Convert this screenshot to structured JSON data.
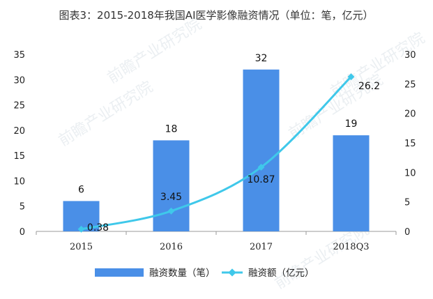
{
  "chart_data": {
    "type": "bar+line",
    "title": "图表3：2015-2018年我国AI医学影像融资情况（单位：笔，亿元）",
    "categories": [
      "2015",
      "2016",
      "2017",
      "2018Q3"
    ],
    "series": [
      {
        "name": "融资数量（笔）",
        "type": "bar",
        "axis": "left",
        "values": [
          6,
          18,
          32,
          19
        ],
        "color": "#4a8fe7"
      },
      {
        "name": "融资额（亿元）",
        "type": "line",
        "axis": "right",
        "values": [
          0.38,
          3.45,
          10.87,
          26.2
        ],
        "color": "#3fc8ea"
      }
    ],
    "bar_labels": [
      "6",
      "18",
      "32",
      "19"
    ],
    "line_labels": [
      "0.38",
      "3.45",
      "10.87",
      "26.2"
    ],
    "y_left": {
      "min": 0,
      "max": 35,
      "step": 5,
      "ticks": [
        "0",
        "5",
        "10",
        "15",
        "20",
        "25",
        "30",
        "35"
      ]
    },
    "y_right": {
      "min": 0,
      "max": 30,
      "step": 5,
      "ticks": [
        "0",
        "5",
        "10",
        "15",
        "20",
        "25",
        "30"
      ]
    },
    "legend_position": "bottom",
    "grid": false
  },
  "watermark": "前瞻产业研究院"
}
